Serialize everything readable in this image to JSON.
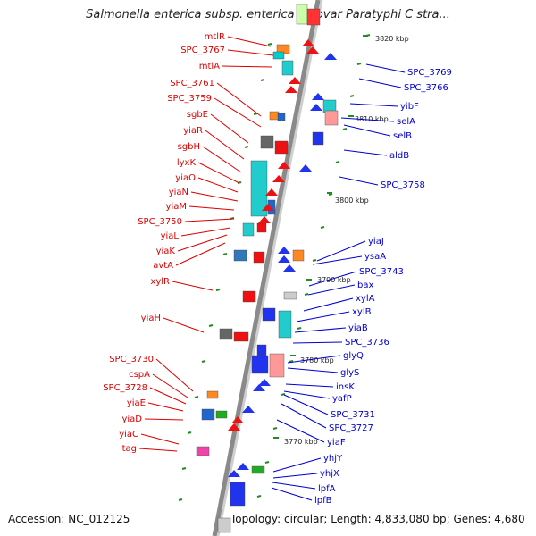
{
  "title": "Salmonella enterica subsp. enterica serovar Paratyphi C stra...",
  "accession": "Accession: NC_012125",
  "summary": "Topology: circular; Length: 4,833,080 bp; Genes: 4,680",
  "colors": {
    "left_label": "#dd0000",
    "right_label": "#0000cc",
    "backbone": "#8a8a8a",
    "tick": "#228b22"
  },
  "positions": [
    {
      "label": "3820 kbp"
    },
    {
      "label": "3810 kbp"
    },
    {
      "label": "3800 kbp"
    },
    {
      "label": "3790 kbp"
    },
    {
      "label": "3780 kbp"
    },
    {
      "label": "3770 kbp"
    }
  ],
  "left_genes": [
    {
      "name": "mtlR"
    },
    {
      "name": "SPC_3767"
    },
    {
      "name": "mtlA"
    },
    {
      "name": "SPC_3761"
    },
    {
      "name": "SPC_3759"
    },
    {
      "name": "sgbE"
    },
    {
      "name": "yiaR"
    },
    {
      "name": "sgbH"
    },
    {
      "name": "lyxK"
    },
    {
      "name": "yiaO"
    },
    {
      "name": "yiaN"
    },
    {
      "name": "yiaM"
    },
    {
      "name": "SPC_3750"
    },
    {
      "name": "yiaL"
    },
    {
      "name": "yiaK"
    },
    {
      "name": "avtA"
    },
    {
      "name": "xylR"
    },
    {
      "name": "yiaH"
    },
    {
      "name": "SPC_3730"
    },
    {
      "name": "cspA"
    },
    {
      "name": "SPC_3728"
    },
    {
      "name": "yiaE"
    },
    {
      "name": "yiaD"
    },
    {
      "name": "yiaC"
    },
    {
      "name": "tag"
    }
  ],
  "right_genes": [
    {
      "name": "SPC_3769"
    },
    {
      "name": "SPC_3766"
    },
    {
      "name": "yibF"
    },
    {
      "name": "selA"
    },
    {
      "name": "selB"
    },
    {
      "name": "aldB"
    },
    {
      "name": "SPC_3758"
    },
    {
      "name": "yiaJ"
    },
    {
      "name": "ysaA"
    },
    {
      "name": "SPC_3743"
    },
    {
      "name": "bax"
    },
    {
      "name": "xylA"
    },
    {
      "name": "xylB"
    },
    {
      "name": "yiaB"
    },
    {
      "name": "SPC_3736"
    },
    {
      "name": "glyQ"
    },
    {
      "name": "glyS"
    },
    {
      "name": "insK"
    },
    {
      "name": "yafP"
    },
    {
      "name": "SPC_3731"
    },
    {
      "name": "SPC_3727"
    },
    {
      "name": "yiaF"
    },
    {
      "name": "yhjY"
    },
    {
      "name": "yhjX"
    },
    {
      "name": "lpfA"
    },
    {
      "name": "lpfB"
    }
  ]
}
